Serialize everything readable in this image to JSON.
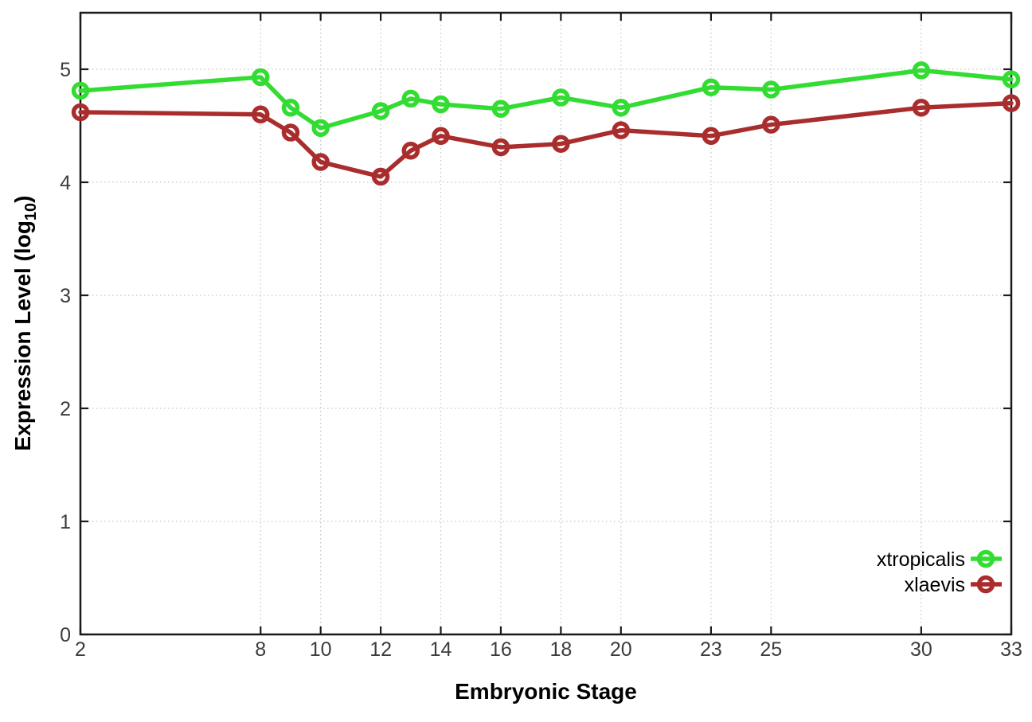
{
  "chart_data": {
    "type": "line",
    "title": "",
    "xlabel": "Embryonic Stage",
    "ylabel_main": "Expression Level (log",
    "ylabel_sub": "10",
    "ylabel_end": ")",
    "xlim": [
      2,
      33
    ],
    "ylim": [
      0,
      5.5
    ],
    "grid": true,
    "grid_color": "#c6c6c6",
    "border_color": "#1a1a1a",
    "tick_label_color": "#3c3c3c",
    "x_ticks": [
      2,
      8,
      10,
      12,
      14,
      16,
      18,
      20,
      23,
      25,
      30,
      33
    ],
    "y_ticks": [
      0,
      1,
      2,
      3,
      4,
      5
    ],
    "legend_position": "inside-bottom-right",
    "x": [
      2,
      8,
      9,
      10,
      12,
      13,
      14,
      16,
      18,
      20,
      23,
      25,
      30,
      33
    ],
    "series": [
      {
        "name": "xtropicalis",
        "color": "#32dc32",
        "values": [
          4.81,
          4.93,
          4.66,
          4.48,
          4.63,
          4.74,
          4.69,
          4.65,
          4.75,
          4.66,
          4.84,
          4.82,
          4.99,
          4.91
        ]
      },
      {
        "name": "xlaevis",
        "color": "#aa2d2d",
        "values": [
          4.62,
          4.6,
          4.44,
          4.18,
          4.05,
          4.28,
          4.41,
          4.31,
          4.34,
          4.46,
          4.41,
          4.51,
          4.66,
          4.7
        ]
      }
    ]
  }
}
